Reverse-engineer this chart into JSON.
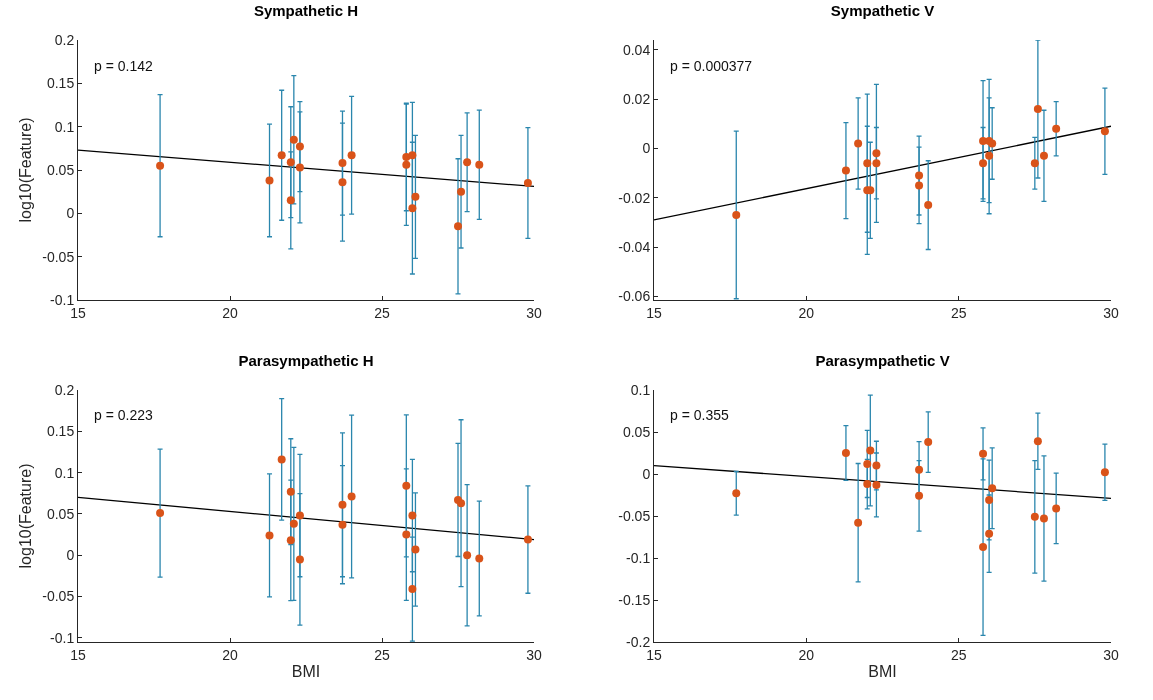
{
  "chart_data": [
    {
      "type": "scatter",
      "title": "Sympathetic H",
      "ylabel": "log10(Feature)",
      "xlim": [
        15,
        30
      ],
      "xticks": [
        15,
        20,
        25,
        30
      ],
      "ylim": [
        -0.1,
        0.2
      ],
      "yticks": [
        -0.1,
        -0.05,
        0,
        0.05,
        0.1,
        0.15,
        0.2
      ],
      "annotations": [
        "p = 0.142"
      ],
      "series": [
        {
          "marker": "circle",
          "color": "#d95319",
          "x": [
            17.7,
            21.3,
            21.7,
            22.0,
            22.0,
            22.1,
            22.3,
            22.3,
            23.7,
            23.7,
            24.0,
            25.8,
            25.8,
            26.0,
            26.0,
            26.1,
            27.5,
            27.6,
            27.8,
            28.2,
            29.8
          ],
          "values": [
            0.055,
            0.038,
            0.067,
            0.059,
            0.015,
            0.085,
            0.077,
            0.053,
            0.058,
            0.036,
            0.067,
            0.065,
            0.056,
            0.067,
            0.006,
            0.019,
            -0.015,
            0.025,
            0.059,
            0.056,
            0.035
          ],
          "errors": [
            0.082,
            0.065,
            0.075,
            0.064,
            0.056,
            0.074,
            0.052,
            0.064,
            0.06,
            0.068,
            0.068,
            0.062,
            0.07,
            0.061,
            0.076,
            0.071,
            0.078,
            0.065,
            0.057,
            0.063,
            0.064
          ]
        },
        {
          "type": "line",
          "marker": "none",
          "color": "#000000",
          "x": [
            15,
            30
          ],
          "values": [
            0.073,
            0.031
          ]
        }
      ]
    },
    {
      "type": "scatter",
      "title": "Sympathetic V",
      "xlim": [
        15,
        30
      ],
      "xticks": [
        15,
        20,
        25,
        30
      ],
      "ylim": [
        -0.0615,
        0.044
      ],
      "yticks": [
        -0.06,
        -0.04,
        -0.02,
        0,
        0.02,
        0.04
      ],
      "annotations": [
        "p = 0.000377"
      ],
      "series": [
        {
          "marker": "circle",
          "color": "#d95319",
          "x": [
            17.7,
            21.3,
            21.7,
            22.0,
            22.0,
            22.1,
            22.3,
            22.3,
            23.7,
            23.7,
            24.0,
            25.8,
            25.8,
            26.0,
            26.0,
            26.1,
            27.5,
            27.6,
            27.8,
            28.2,
            29.8
          ],
          "values": [
            -0.027,
            -0.009,
            0.002,
            -0.006,
            -0.017,
            -0.017,
            -0.002,
            -0.006,
            -0.011,
            -0.015,
            -0.023,
            0.003,
            -0.006,
            0.003,
            -0.003,
            0.002,
            -0.006,
            0.016,
            -0.003,
            0.008,
            0.007
          ],
          "errors": [
            0.034,
            0.0195,
            0.0185,
            0.028,
            0.026,
            0.0195,
            0.028,
            0.0145,
            0.016,
            0.0155,
            0.018,
            0.0245,
            0.0145,
            0.025,
            0.0235,
            0.0145,
            0.0105,
            0.028,
            0.0185,
            0.011,
            0.0175
          ]
        },
        {
          "type": "line",
          "marker": "none",
          "color": "#000000",
          "x": [
            15,
            30
          ],
          "values": [
            -0.029,
            0.009
          ]
        }
      ]
    },
    {
      "type": "scatter",
      "title": "Parasympathetic H",
      "xlabel": "BMI",
      "ylabel": "log10(Feature)",
      "xlim": [
        15,
        30
      ],
      "xticks": [
        15,
        20,
        25,
        30
      ],
      "ylim": [
        -0.105,
        0.2
      ],
      "yticks": [
        -0.1,
        -0.05,
        0,
        0.05,
        0.1,
        0.15,
        0.2
      ],
      "annotations": [
        "p = 0.223"
      ],
      "series": [
        {
          "marker": "circle",
          "color": "#d95319",
          "x": [
            17.7,
            21.3,
            21.7,
            22.0,
            22.0,
            22.1,
            22.3,
            22.3,
            23.7,
            23.7,
            24.0,
            25.8,
            25.8,
            26.0,
            26.0,
            26.1,
            27.5,
            27.6,
            27.8,
            28.2,
            29.8
          ],
          "values": [
            0.051,
            0.024,
            0.116,
            0.018,
            0.077,
            0.038,
            0.048,
            -0.005,
            0.061,
            0.037,
            0.071,
            0.084,
            0.025,
            0.048,
            -0.041,
            0.007,
            0.067,
            0.063,
            0.0,
            -0.004,
            0.019
          ],
          "errors": [
            0.0775,
            0.0745,
            0.0735,
            0.073,
            0.064,
            0.0925,
            0.074,
            0.0795,
            0.087,
            0.0715,
            0.0985,
            0.086,
            0.0795,
            0.068,
            0.063,
            0.0685,
            0.0685,
            0.101,
            0.0855,
            0.0695,
            0.065
          ]
        },
        {
          "type": "line",
          "marker": "none",
          "color": "#000000",
          "x": [
            15,
            30
          ],
          "values": [
            0.07,
            0.019
          ]
        }
      ]
    },
    {
      "type": "scatter",
      "title": "Parasympathetic V",
      "xlabel": "BMI",
      "xlim": [
        15,
        30
      ],
      "xticks": [
        15,
        20,
        25,
        30
      ],
      "ylim": [
        -0.2,
        0.1
      ],
      "yticks": [
        -0.2,
        -0.15,
        -0.1,
        -0.05,
        0,
        0.05,
        0.1
      ],
      "annotations": [
        "p = 0.355"
      ],
      "series": [
        {
          "marker": "circle",
          "color": "#d95319",
          "x": [
            17.7,
            21.3,
            21.7,
            22.0,
            22.0,
            22.1,
            22.3,
            22.3,
            23.7,
            23.7,
            24.0,
            25.8,
            25.8,
            26.0,
            26.0,
            26.1,
            27.5,
            27.6,
            27.8,
            28.2,
            29.8
          ],
          "values": [
            -0.023,
            0.025,
            -0.058,
            0.012,
            -0.012,
            0.028,
            -0.013,
            0.01,
            0.005,
            -0.026,
            0.038,
            0.024,
            -0.087,
            -0.031,
            -0.071,
            -0.017,
            -0.051,
            0.039,
            -0.053,
            -0.041,
            0.002
          ],
          "errors": [
            0.026,
            0.0325,
            0.0705,
            0.04,
            0.0295,
            0.066,
            0.038,
            0.029,
            0.0335,
            0.042,
            0.036,
            0.031,
            0.105,
            0.0475,
            0.046,
            0.048,
            0.067,
            0.0335,
            0.0745,
            0.042,
            0.0335
          ]
        },
        {
          "type": "line",
          "marker": "none",
          "color": "#000000",
          "x": [
            15,
            30
          ],
          "values": [
            0.01,
            -0.029
          ]
        }
      ]
    }
  ]
}
